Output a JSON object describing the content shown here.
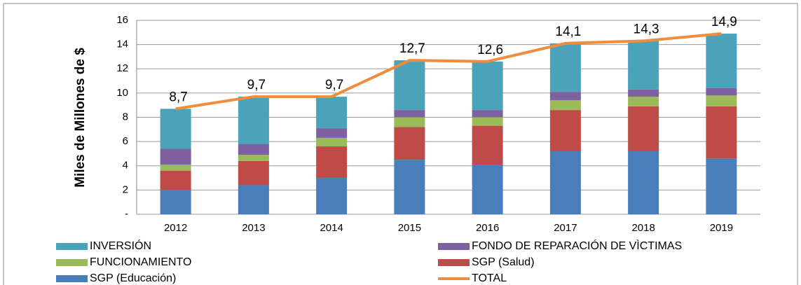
{
  "chart_data": {
    "type": "bar",
    "ylabel": "Miles de Millones de $",
    "categories": [
      "2012",
      "2013",
      "2014",
      "2015",
      "2016",
      "2017",
      "2018",
      "2019"
    ],
    "stacked": true,
    "series": [
      {
        "name": "INVERSIÓN",
        "color": "#4aa3b8",
        "values": [
          3.3,
          3.9,
          2.6,
          4.1,
          4.0,
          4.0,
          4.0,
          4.5
        ]
      },
      {
        "name": "FONDO DE REPARACIÓN DE VÌCTIMAS",
        "color": "#7d60a0",
        "values": [
          1.3,
          0.9,
          0.8,
          0.6,
          0.6,
          0.7,
          0.6,
          0.6
        ]
      },
      {
        "name": "FUNCIONAMIENTO",
        "color": "#9bbb59",
        "values": [
          0.5,
          0.5,
          0.7,
          0.8,
          0.7,
          0.8,
          0.8,
          0.9
        ]
      },
      {
        "name": "SGP (Salud)",
        "color": "#be4b48",
        "values": [
          1.6,
          2.0,
          2.6,
          2.7,
          3.2,
          3.4,
          3.7,
          4.3
        ]
      },
      {
        "name": "SGP (Educación)",
        "color": "#4a7ebb",
        "values": [
          2.0,
          2.4,
          3.0,
          4.5,
          4.1,
          5.2,
          5.2,
          4.6
        ]
      },
      {
        "name": "TOTAL",
        "color": "#f08c3c",
        "type": "line",
        "values": [
          8.7,
          9.7,
          9.7,
          12.7,
          12.6,
          14.1,
          14.3,
          14.9
        ],
        "value_labels": [
          "8,7",
          "9,7",
          "9,7",
          "12,7",
          "12,6",
          "14,1",
          "14,3",
          "14,9"
        ]
      }
    ],
    "ylim": [
      0,
      16
    ],
    "yticks": [
      {
        "value": 0,
        "label": "-"
      },
      2,
      4,
      6,
      8,
      10,
      12,
      14,
      16
    ],
    "grid": true
  }
}
